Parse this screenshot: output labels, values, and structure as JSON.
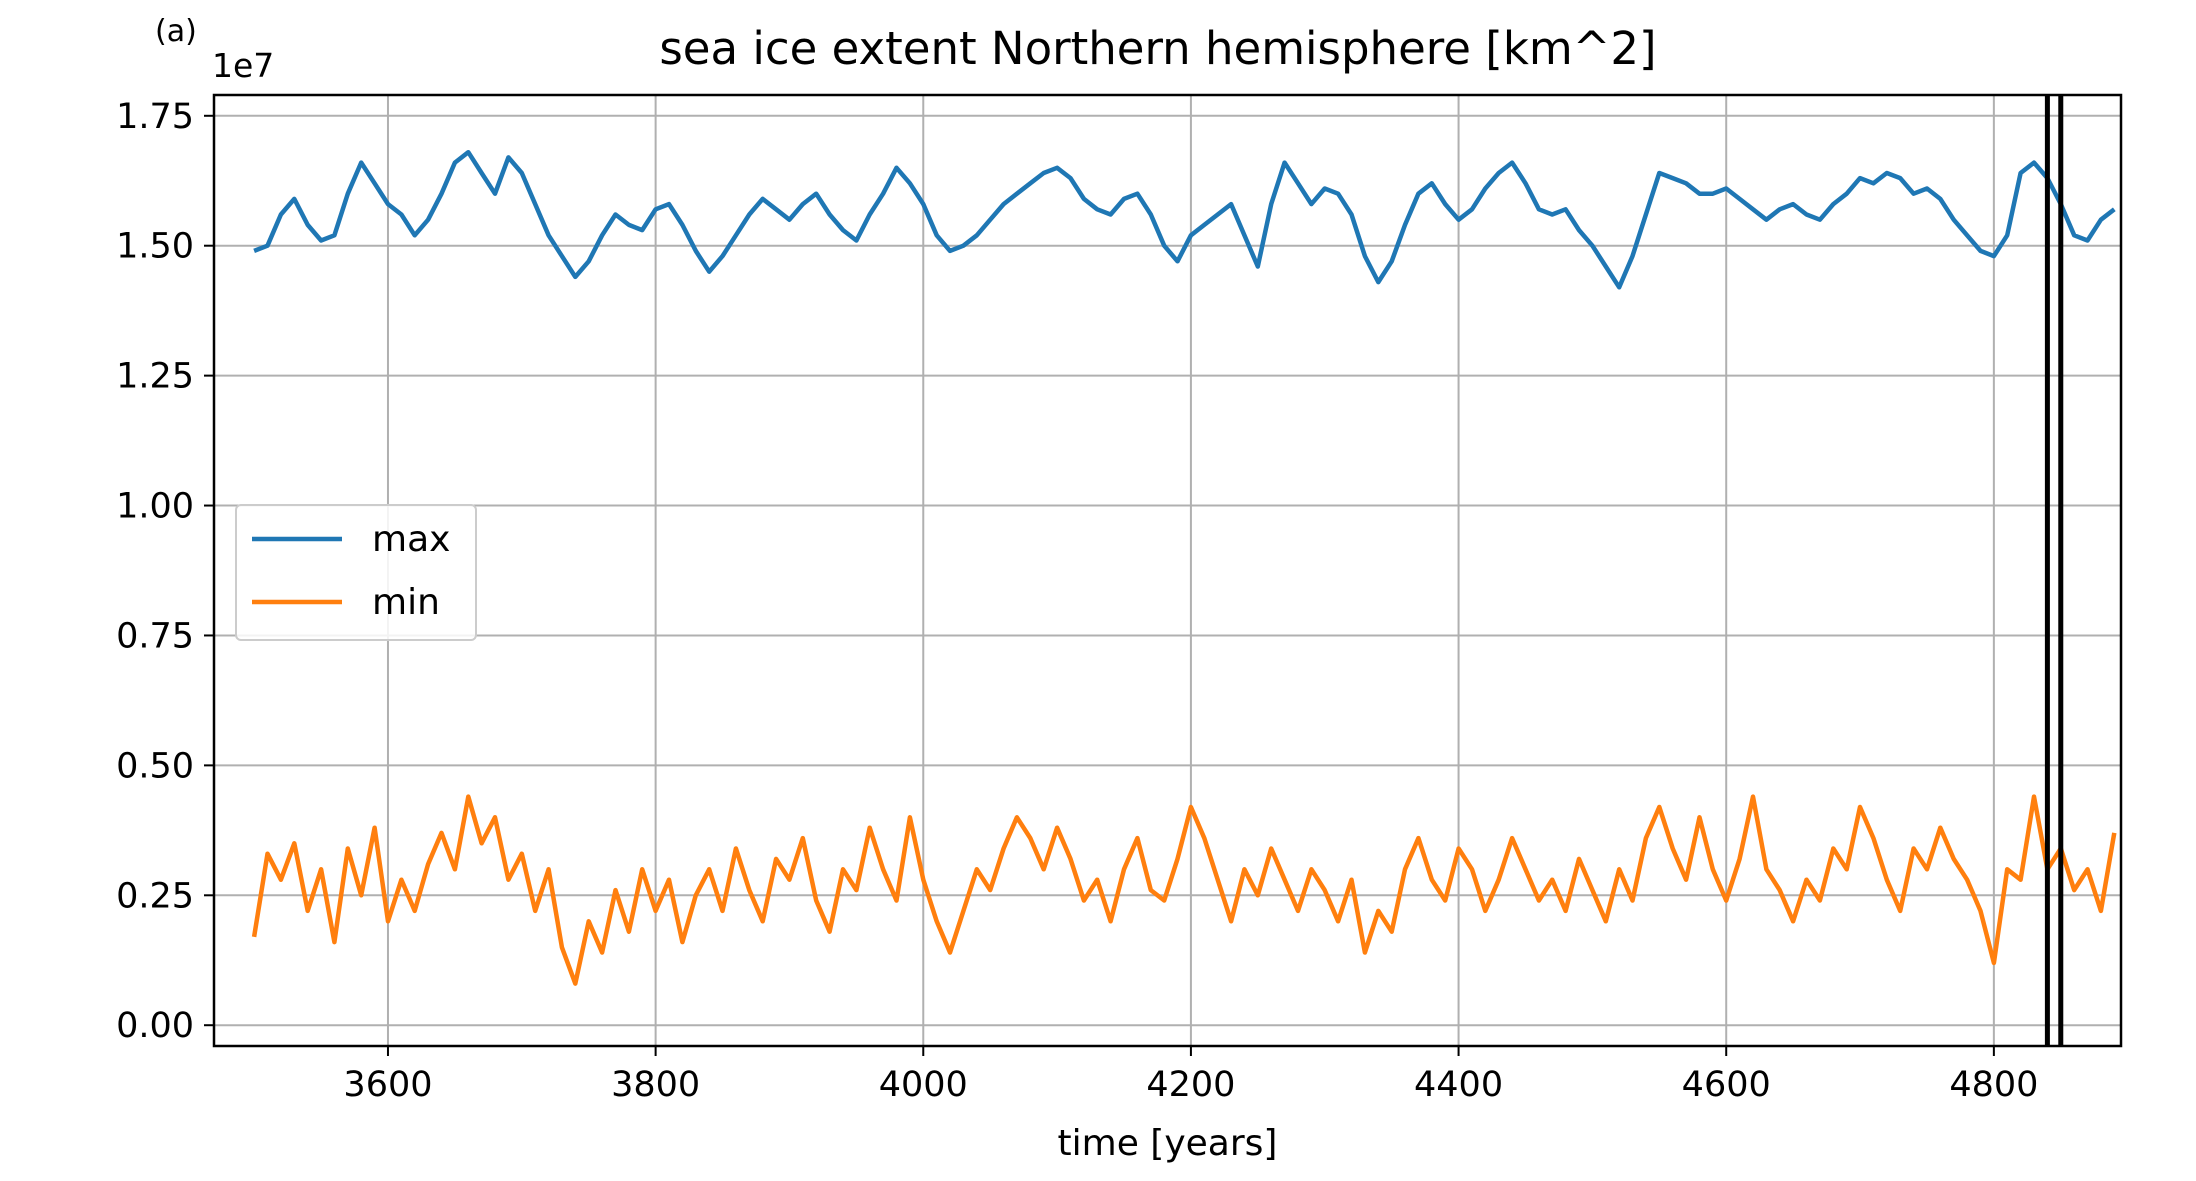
{
  "panel_label": "(a)",
  "chart_data": {
    "type": "line",
    "title": "sea ice extent Northern hemisphere [km^2]",
    "xlabel": "time [years]",
    "ylabel": "",
    "y_offset_label": "1e7",
    "xlim": [
      3470,
      4895
    ],
    "ylim": [
      -0.04,
      1.79
    ],
    "y_scale_factor": 10000000,
    "x_ticks": [
      3600,
      3800,
      4000,
      4200,
      4400,
      4600,
      4800
    ],
    "x_tick_labels": [
      "3600",
      "3800",
      "4000",
      "4200",
      "4400",
      "4600",
      "4800"
    ],
    "y_ticks": [
      0.0,
      0.25,
      0.5,
      0.75,
      1.0,
      1.25,
      1.5,
      1.75
    ],
    "y_tick_labels": [
      "0.00",
      "0.25",
      "0.50",
      "0.75",
      "1.00",
      "1.25",
      "1.50",
      "1.75"
    ],
    "grid": true,
    "legend_position": "center-left",
    "vertical_lines_x": [
      4840,
      4850
    ],
    "vertical_line_color": "#000000",
    "series": [
      {
        "name": "max",
        "color": "#1f77b4",
        "x": [
          3500,
          3510,
          3520,
          3530,
          3540,
          3550,
          3560,
          3570,
          3580,
          3590,
          3600,
          3610,
          3620,
          3630,
          3640,
          3650,
          3660,
          3670,
          3680,
          3690,
          3700,
          3710,
          3720,
          3730,
          3740,
          3750,
          3760,
          3770,
          3780,
          3790,
          3800,
          3810,
          3820,
          3830,
          3840,
          3850,
          3860,
          3870,
          3880,
          3890,
          3900,
          3910,
          3920,
          3930,
          3940,
          3950,
          3960,
          3970,
          3980,
          3990,
          4000,
          4010,
          4020,
          4030,
          4040,
          4050,
          4060,
          4070,
          4080,
          4090,
          4100,
          4110,
          4120,
          4130,
          4140,
          4150,
          4160,
          4170,
          4180,
          4190,
          4200,
          4210,
          4220,
          4230,
          4240,
          4250,
          4260,
          4270,
          4280,
          4290,
          4300,
          4310,
          4320,
          4330,
          4340,
          4350,
          4360,
          4370,
          4380,
          4390,
          4400,
          4410,
          4420,
          4430,
          4440,
          4450,
          4460,
          4470,
          4480,
          4490,
          4500,
          4510,
          4520,
          4530,
          4540,
          4550,
          4560,
          4570,
          4580,
          4590,
          4600,
          4610,
          4620,
          4630,
          4640,
          4650,
          4660,
          4670,
          4680,
          4690,
          4700,
          4710,
          4720,
          4730,
          4740,
          4750,
          4760,
          4770,
          4780,
          4790,
          4800,
          4810,
          4820,
          4830,
          4840,
          4850,
          4860,
          4870,
          4880,
          4890
        ],
        "y": [
          1.49,
          1.5,
          1.56,
          1.59,
          1.54,
          1.51,
          1.52,
          1.6,
          1.66,
          1.62,
          1.58,
          1.56,
          1.52,
          1.55,
          1.6,
          1.66,
          1.68,
          1.64,
          1.6,
          1.67,
          1.64,
          1.58,
          1.52,
          1.48,
          1.44,
          1.47,
          1.52,
          1.56,
          1.54,
          1.53,
          1.57,
          1.58,
          1.54,
          1.49,
          1.45,
          1.48,
          1.52,
          1.56,
          1.59,
          1.57,
          1.55,
          1.58,
          1.6,
          1.56,
          1.53,
          1.51,
          1.56,
          1.6,
          1.65,
          1.62,
          1.58,
          1.52,
          1.49,
          1.5,
          1.52,
          1.55,
          1.58,
          1.6,
          1.62,
          1.64,
          1.65,
          1.63,
          1.59,
          1.57,
          1.56,
          1.59,
          1.6,
          1.56,
          1.5,
          1.47,
          1.52,
          1.54,
          1.56,
          1.58,
          1.52,
          1.46,
          1.58,
          1.66,
          1.62,
          1.58,
          1.61,
          1.6,
          1.56,
          1.48,
          1.43,
          1.47,
          1.54,
          1.6,
          1.62,
          1.58,
          1.55,
          1.57,
          1.61,
          1.64,
          1.66,
          1.62,
          1.57,
          1.56,
          1.57,
          1.53,
          1.5,
          1.46,
          1.42,
          1.48,
          1.56,
          1.64,
          1.63,
          1.62,
          1.6,
          1.6,
          1.61,
          1.59,
          1.57,
          1.55,
          1.57,
          1.58,
          1.56,
          1.55,
          1.58,
          1.6,
          1.63,
          1.62,
          1.64,
          1.63,
          1.6,
          1.61,
          1.59,
          1.55,
          1.52,
          1.49,
          1.48,
          1.52,
          1.64,
          1.66,
          1.63,
          1.58,
          1.52,
          1.51,
          1.55,
          1.57
        ]
      },
      {
        "name": "min",
        "color": "#ff7f0e",
        "x": [
          3500,
          3510,
          3520,
          3530,
          3540,
          3550,
          3560,
          3570,
          3580,
          3590,
          3600,
          3610,
          3620,
          3630,
          3640,
          3650,
          3660,
          3670,
          3680,
          3690,
          3700,
          3710,
          3720,
          3730,
          3740,
          3750,
          3760,
          3770,
          3780,
          3790,
          3800,
          3810,
          3820,
          3830,
          3840,
          3850,
          3860,
          3870,
          3880,
          3890,
          3900,
          3910,
          3920,
          3930,
          3940,
          3950,
          3960,
          3970,
          3980,
          3990,
          4000,
          4010,
          4020,
          4030,
          4040,
          4050,
          4060,
          4070,
          4080,
          4090,
          4100,
          4110,
          4120,
          4130,
          4140,
          4150,
          4160,
          4170,
          4180,
          4190,
          4200,
          4210,
          4220,
          4230,
          4240,
          4250,
          4260,
          4270,
          4280,
          4290,
          4300,
          4310,
          4320,
          4330,
          4340,
          4350,
          4360,
          4370,
          4380,
          4390,
          4400,
          4410,
          4420,
          4430,
          4440,
          4450,
          4460,
          4470,
          4480,
          4490,
          4500,
          4510,
          4520,
          4530,
          4540,
          4550,
          4560,
          4570,
          4580,
          4590,
          4600,
          4610,
          4620,
          4630,
          4640,
          4650,
          4660,
          4670,
          4680,
          4690,
          4700,
          4710,
          4720,
          4730,
          4740,
          4750,
          4760,
          4770,
          4780,
          4790,
          4800,
          4810,
          4820,
          4830,
          4840,
          4850,
          4860,
          4870,
          4880,
          4890
        ],
        "y": [
          0.17,
          0.33,
          0.28,
          0.35,
          0.22,
          0.3,
          0.16,
          0.34,
          0.25,
          0.38,
          0.2,
          0.28,
          0.22,
          0.31,
          0.37,
          0.3,
          0.44,
          0.35,
          0.4,
          0.28,
          0.33,
          0.22,
          0.3,
          0.15,
          0.08,
          0.2,
          0.14,
          0.26,
          0.18,
          0.3,
          0.22,
          0.28,
          0.16,
          0.25,
          0.3,
          0.22,
          0.34,
          0.26,
          0.2,
          0.32,
          0.28,
          0.36,
          0.24,
          0.18,
          0.3,
          0.26,
          0.38,
          0.3,
          0.24,
          0.4,
          0.28,
          0.2,
          0.14,
          0.22,
          0.3,
          0.26,
          0.34,
          0.4,
          0.36,
          0.3,
          0.38,
          0.32,
          0.24,
          0.28,
          0.2,
          0.3,
          0.36,
          0.26,
          0.24,
          0.32,
          0.42,
          0.36,
          0.28,
          0.2,
          0.3,
          0.25,
          0.34,
          0.28,
          0.22,
          0.3,
          0.26,
          0.2,
          0.28,
          0.14,
          0.22,
          0.18,
          0.3,
          0.36,
          0.28,
          0.24,
          0.34,
          0.3,
          0.22,
          0.28,
          0.36,
          0.3,
          0.24,
          0.28,
          0.22,
          0.32,
          0.26,
          0.2,
          0.3,
          0.24,
          0.36,
          0.42,
          0.34,
          0.28,
          0.4,
          0.3,
          0.24,
          0.32,
          0.44,
          0.3,
          0.26,
          0.2,
          0.28,
          0.24,
          0.34,
          0.3,
          0.42,
          0.36,
          0.28,
          0.22,
          0.34,
          0.3,
          0.38,
          0.32,
          0.28,
          0.22,
          0.12,
          0.3,
          0.28,
          0.44,
          0.3,
          0.34,
          0.26,
          0.3,
          0.22,
          0.37
        ]
      }
    ]
  }
}
